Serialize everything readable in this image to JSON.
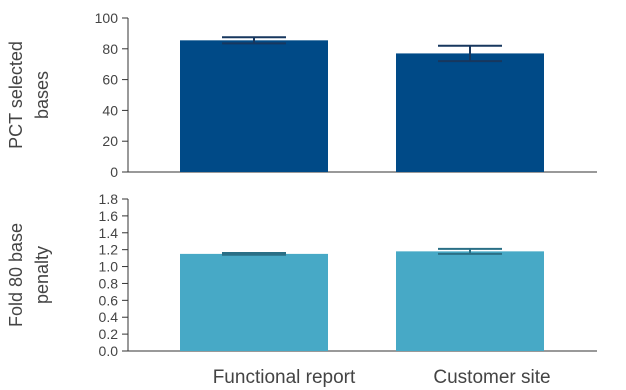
{
  "chart_data": [
    {
      "type": "bar",
      "categories": [
        "Functional report",
        "Customer site"
      ],
      "ylabel_lines": [
        "PCT selected",
        "bases"
      ],
      "ylim": [
        0,
        100
      ],
      "yticks": [
        0,
        20,
        40,
        60,
        80,
        100
      ],
      "ytick_labels": [
        "0",
        "20",
        "40",
        "60",
        "80",
        "100"
      ],
      "series": [
        {
          "values": [
            85.5,
            77.0
          ],
          "error": [
            2.0,
            5.0
          ],
          "color": "#004a87",
          "error_color": "#17375e"
        }
      ],
      "grid": false
    },
    {
      "type": "bar",
      "categories": [
        "Functional report",
        "Customer site"
      ],
      "ylabel_lines": [
        "Fold 80 base",
        "penalty"
      ],
      "ylim": [
        0,
        1.8
      ],
      "yticks": [
        0,
        0.2,
        0.4,
        0.6,
        0.8,
        1.0,
        1.2,
        1.4,
        1.6,
        1.8
      ],
      "ytick_labels": [
        "0.0",
        "0.2",
        "0.4",
        "0.6",
        "0.8",
        "1.0",
        "1.2",
        "1.4",
        "1.6",
        "1.8"
      ],
      "series": [
        {
          "values": [
            1.15,
            1.18
          ],
          "error": [
            0.01,
            0.03
          ],
          "color": "#47a9c6",
          "error_color": "#2a6f86"
        }
      ],
      "grid": false
    }
  ],
  "x_category_labels": [
    "Functional report",
    "Customer site"
  ]
}
